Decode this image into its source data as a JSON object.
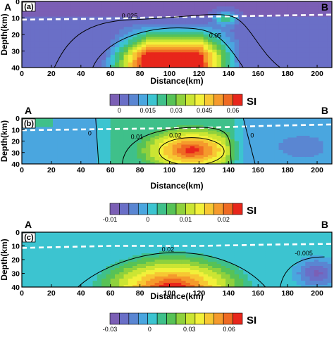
{
  "colormap": [
    "#7b5fb5",
    "#6a6fc7",
    "#5a86d2",
    "#4aa6df",
    "#3cc4d0",
    "#3fc08a",
    "#57c256",
    "#8fd13d",
    "#cbe533",
    "#f2f03a",
    "#f7c733",
    "#f59a2c",
    "#ef6a22",
    "#e8261b"
  ],
  "chart_data": [
    {
      "type": "heatmap",
      "panel_label": "(a)",
      "left_label": "A",
      "right_label": "B",
      "xlabel": "Distance(km)",
      "ylabel": "Depth(km)",
      "xlim": [
        0,
        210
      ],
      "ylim": [
        40,
        0
      ],
      "x_ticks": [
        0,
        20,
        40,
        60,
        80,
        100,
        120,
        140,
        160,
        180,
        200
      ],
      "y_ticks": [
        0,
        10,
        20,
        30,
        40
      ],
      "boundary_line_depth": [
        [
          0,
          11
        ],
        [
          50,
          10.5
        ],
        [
          100,
          9.5
        ],
        [
          140,
          9
        ],
        [
          210,
          8
        ]
      ],
      "anomaly": {
        "x_range": [
          52,
          152
        ],
        "depth_top": 17,
        "shape": "trapezoid",
        "peak_center": [
          100,
          30
        ]
      },
      "contours": [
        {
          "value": "0.025",
          "label_at": [
            73,
            10
          ]
        },
        {
          "value": "0.05",
          "label_at": [
            131,
            22
          ]
        }
      ],
      "colorbar": {
        "unit": "SI",
        "ticks": [
          "0",
          "0.015",
          "0.03",
          "0.045",
          "0.06"
        ],
        "range": [
          -0.005,
          0.065
        ]
      }
    },
    {
      "type": "heatmap",
      "panel_label": "(b)",
      "left_label": "A",
      "right_label": "B",
      "xlabel": "Distance(km)",
      "ylabel": "Depth(km)",
      "xlim": [
        0,
        210
      ],
      "ylim": [
        40,
        0
      ],
      "x_ticks": [
        0,
        20,
        40,
        60,
        80,
        100,
        120,
        140,
        160,
        180,
        200
      ],
      "y_ticks": [
        0,
        10,
        20,
        30,
        40
      ],
      "boundary_line_depth": [
        [
          0,
          10.5
        ],
        [
          60,
          9.5
        ],
        [
          120,
          8.5
        ],
        [
          170,
          6.5
        ],
        [
          210,
          5.5
        ]
      ],
      "anomaly": {
        "x_range": [
          52,
          150
        ],
        "depth_top": 0,
        "shape": "dome",
        "peak_center": [
          115,
          28
        ]
      },
      "contours": [
        {
          "value": "0",
          "label_at": [
            46,
            15
          ]
        },
        {
          "value": "0.01",
          "label_at": [
            78,
            18
          ]
        },
        {
          "value": "0.02",
          "label_at": [
            104,
            17
          ]
        },
        {
          "value": "0",
          "label_at": [
            156,
            17
          ]
        }
      ],
      "colorbar": {
        "unit": "SI",
        "ticks": [
          "-0.01",
          "0",
          "0.01",
          "0.02"
        ],
        "range": [
          -0.01,
          0.025
        ]
      }
    },
    {
      "type": "heatmap",
      "panel_label": "(c)",
      "left_label": "A",
      "right_label": "B",
      "xlabel": "Distance(km)",
      "ylabel": "Depth(km)",
      "xlim": [
        0,
        210
      ],
      "ylim": [
        40,
        0
      ],
      "x_ticks": [
        0,
        20,
        40,
        60,
        80,
        100,
        120,
        140,
        160,
        180,
        200
      ],
      "y_ticks": [
        0,
        10,
        20,
        30,
        40
      ],
      "boundary_line_depth": [
        [
          0,
          11.5
        ],
        [
          60,
          10
        ],
        [
          120,
          10
        ],
        [
          170,
          9
        ],
        [
          210,
          8.5
        ]
      ],
      "anomaly": {
        "x_range": [
          45,
          165
        ],
        "depth_top": 15,
        "shape": "dome",
        "peak_center": [
          100,
          38
        ]
      },
      "contours": [
        {
          "value": "0.02",
          "label_at": [
            99,
            14
          ]
        },
        {
          "value": "-0.005",
          "label_at": [
            191,
            17
          ]
        }
      ],
      "colorbar": {
        "unit": "SI",
        "ticks": [
          "-0.03",
          "0",
          "0.03",
          "0.06"
        ],
        "range": [
          -0.03,
          0.07
        ]
      }
    }
  ]
}
